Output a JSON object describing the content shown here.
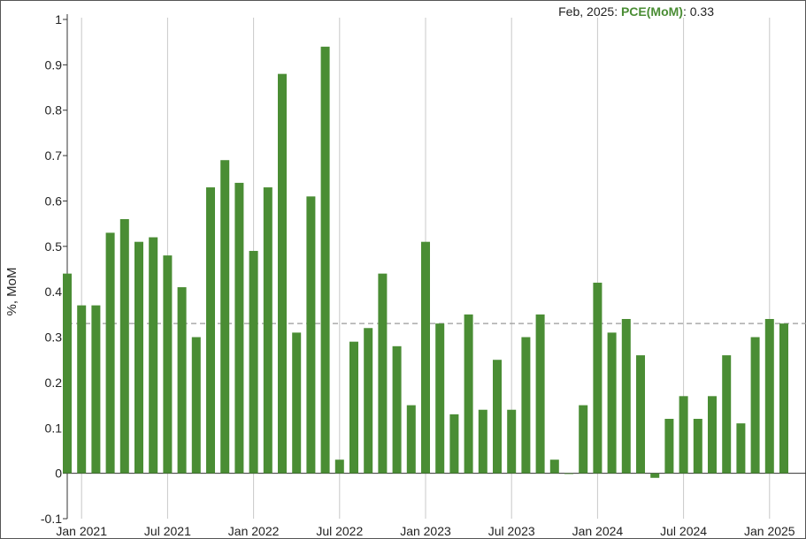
{
  "readout": {
    "date": "Feb, 2025",
    "series": "PCE(MoM)",
    "value": "0.33"
  },
  "colors": {
    "bar": "#4a8d34",
    "grid": "#c8c8c8",
    "reference": "#9a9a9a",
    "series_label": "#4a8d34"
  },
  "chart_data": {
    "type": "bar",
    "title": "",
    "xlabel": "",
    "ylabel": "%, MoM",
    "ylim": [
      -0.1,
      1.0
    ],
    "yticks": [
      -0.1,
      0,
      0.1,
      0.2,
      0.3,
      0.4,
      0.5,
      0.6,
      0.7,
      0.8,
      0.9,
      1.0
    ],
    "ytick_labels": [
      "-0.1",
      "0",
      "0.1",
      "0.2",
      "0.3",
      "0.4",
      "0.5",
      "0.6",
      "0.7",
      "0.8",
      "0.9",
      "1"
    ],
    "xticks": [
      {
        "label": "Jan 2021",
        "month_index": 1
      },
      {
        "label": "Jul 2021",
        "month_index": 7
      },
      {
        "label": "Jan 2022",
        "month_index": 13
      },
      {
        "label": "Jul 2022",
        "month_index": 19
      },
      {
        "label": "Jan 2023",
        "month_index": 25
      },
      {
        "label": "Jul 2023",
        "month_index": 31
      },
      {
        "label": "Jan 2024",
        "month_index": 37
      },
      {
        "label": "Jul 2024",
        "month_index": 43
      },
      {
        "label": "Jan 2025",
        "month_index": 49
      }
    ],
    "categories": [
      "Dec 2020",
      "Jan 2021",
      "Feb 2021",
      "Mar 2021",
      "Apr 2021",
      "May 2021",
      "Jun 2021",
      "Jul 2021",
      "Aug 2021",
      "Sep 2021",
      "Oct 2021",
      "Nov 2021",
      "Dec 2021",
      "Jan 2022",
      "Feb 2022",
      "Mar 2022",
      "Apr 2022",
      "May 2022",
      "Jun 2022",
      "Jul 2022",
      "Aug 2022",
      "Sep 2022",
      "Oct 2022",
      "Nov 2022",
      "Dec 2022",
      "Jan 2023",
      "Feb 2023",
      "Mar 2023",
      "Apr 2023",
      "May 2023",
      "Jun 2023",
      "Jul 2023",
      "Aug 2023",
      "Sep 2023",
      "Oct 2023",
      "Nov 2023",
      "Dec 2023",
      "Jan 2024",
      "Feb 2024",
      "Mar 2024",
      "Apr 2024",
      "May 2024",
      "Jun 2024",
      "Jul 2024",
      "Aug 2024",
      "Sep 2024",
      "Oct 2024",
      "Nov 2024",
      "Dec 2024",
      "Jan 2025",
      "Feb 2025"
    ],
    "series": [
      {
        "name": "PCE(MoM)",
        "values": [
          0.44,
          0.37,
          0.37,
          0.53,
          0.56,
          0.51,
          0.52,
          0.48,
          0.41,
          0.3,
          0.63,
          0.69,
          0.64,
          0.49,
          0.63,
          0.88,
          0.31,
          0.61,
          0.94,
          0.03,
          0.29,
          0.32,
          0.44,
          0.28,
          0.15,
          0.51,
          0.33,
          0.13,
          0.35,
          0.14,
          0.25,
          0.14,
          0.3,
          0.35,
          0.03,
          0.0,
          0.15,
          0.42,
          0.31,
          0.34,
          0.26,
          -0.01,
          0.12,
          0.17,
          0.12,
          0.17,
          0.26,
          0.11,
          0.3,
          0.34,
          0.33
        ]
      }
    ],
    "reference_line": 0.33,
    "grid": {
      "x": true,
      "y": false
    },
    "legend": "none"
  }
}
